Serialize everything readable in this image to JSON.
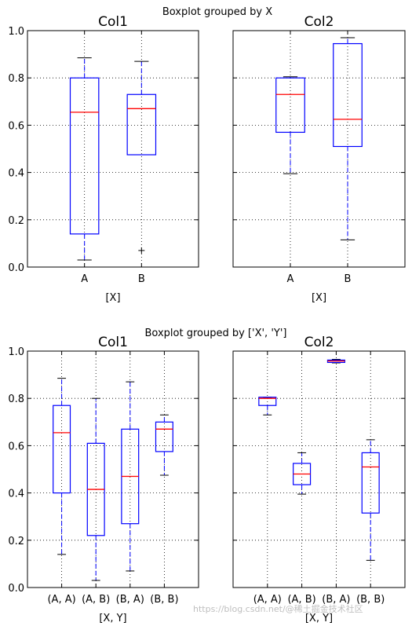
{
  "chart_data": [
    {
      "type": "box",
      "suptitle": "Boxplot grouped by X",
      "panels": [
        {
          "title": "Col1",
          "xlabel": "[X]",
          "categories": [
            "A",
            "B"
          ],
          "ylim": [
            0,
            1
          ],
          "yticks": [
            "0.0",
            "0.2",
            "0.4",
            "0.6",
            "0.8",
            "1.0"
          ],
          "grid": true,
          "boxes": [
            {
              "whisker_low": 0.03,
              "q1": 0.14,
              "median": 0.655,
              "q3": 0.8,
              "whisker_high": 0.885,
              "outliers": []
            },
            {
              "whisker_low": 0.475,
              "q1": 0.475,
              "median": 0.67,
              "q3": 0.73,
              "whisker_high": 0.87,
              "outliers": [
                0.07
              ]
            }
          ]
        },
        {
          "title": "Col2",
          "xlabel": "[X]",
          "categories": [
            "A",
            "B"
          ],
          "ylim": [
            0,
            1
          ],
          "grid": true,
          "boxes": [
            {
              "whisker_low": 0.395,
              "q1": 0.57,
              "median": 0.73,
              "q3": 0.8,
              "whisker_high": 0.805,
              "outliers": []
            },
            {
              "whisker_low": 0.115,
              "q1": 0.51,
              "median": 0.625,
              "q3": 0.945,
              "whisker_high": 0.97,
              "outliers": []
            }
          ]
        }
      ]
    },
    {
      "type": "box",
      "suptitle": "Boxplot grouped by ['X', 'Y']",
      "panels": [
        {
          "title": "Col1",
          "xlabel": "[X, Y]",
          "categories": [
            "(A, A)",
            "(A, B)",
            "(B, A)",
            "(B, B)"
          ],
          "ylim": [
            0,
            1
          ],
          "yticks": [
            "0.0",
            "0.2",
            "0.4",
            "0.6",
            "0.8",
            "1.0"
          ],
          "grid": true,
          "boxes": [
            {
              "whisker_low": 0.14,
              "q1": 0.4,
              "median": 0.655,
              "q3": 0.77,
              "whisker_high": 0.885,
              "outliers": []
            },
            {
              "whisker_low": 0.03,
              "q1": 0.22,
              "median": 0.415,
              "q3": 0.61,
              "whisker_high": 0.8,
              "outliers": []
            },
            {
              "whisker_low": 0.07,
              "q1": 0.27,
              "median": 0.47,
              "q3": 0.67,
              "whisker_high": 0.87,
              "outliers": []
            },
            {
              "whisker_low": 0.475,
              "q1": 0.575,
              "median": 0.67,
              "q3": 0.7,
              "whisker_high": 0.73,
              "outliers": []
            }
          ]
        },
        {
          "title": "Col2",
          "xlabel": "[X, Y]",
          "categories": [
            "(A, A)",
            "(A, B)",
            "(B, A)",
            "(B, B)"
          ],
          "ylim": [
            0,
            1
          ],
          "grid": true,
          "boxes": [
            {
              "whisker_low": 0.73,
              "q1": 0.77,
              "median": 0.8,
              "q3": 0.805,
              "whisker_high": 0.805,
              "outliers": []
            },
            {
              "whisker_low": 0.395,
              "q1": 0.435,
              "median": 0.48,
              "q3": 0.525,
              "whisker_high": 0.57,
              "outliers": []
            },
            {
              "whisker_low": 0.95,
              "q1": 0.952,
              "median": 0.958,
              "q3": 0.962,
              "whisker_high": 0.965,
              "outliers": []
            },
            {
              "whisker_low": 0.115,
              "q1": 0.315,
              "median": 0.51,
              "q3": 0.57,
              "whisker_high": 0.625,
              "outliers": []
            }
          ]
        }
      ]
    }
  ],
  "colors": {
    "box": "#0000ff",
    "median": "#ff0000",
    "grid": "#000000",
    "axis": "#000000"
  },
  "watermark": "https://blog.csdn.net/@稀土掘金技术社区"
}
